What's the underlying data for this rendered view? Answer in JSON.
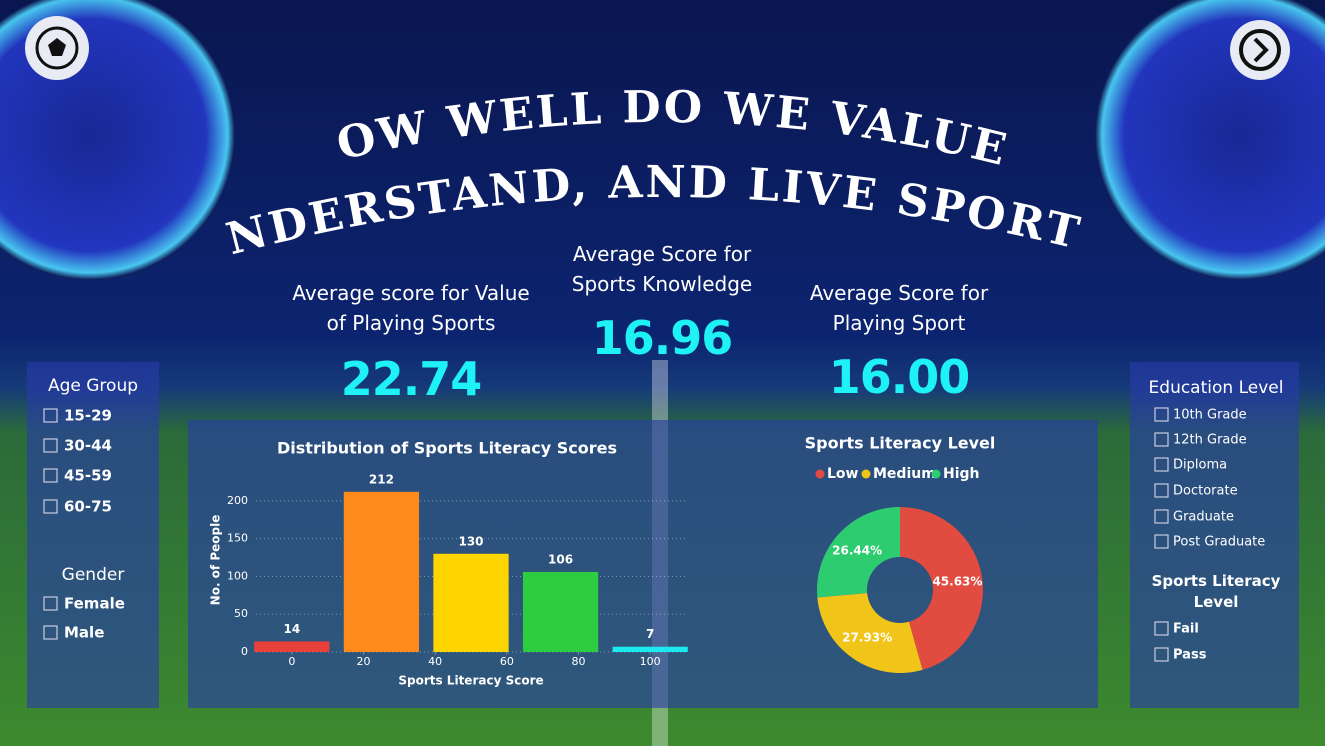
{
  "header": {
    "title_lines": [
      "HOW WELL DO WE VALUE,",
      "UNDERSTAND, AND LIVE SPORTS?"
    ]
  },
  "kpis": [
    {
      "label": "Average score for Value of Playing Sports",
      "value": "22.74"
    },
    {
      "label": "Average Score for Sports Knowledge",
      "value": "16.96"
    },
    {
      "label": "Average Score for Playing Sport",
      "value": "16.00"
    }
  ],
  "filters": {
    "age_group": {
      "title": "Age Group",
      "options": [
        "15-29",
        "30-44",
        "45-59",
        "60-75"
      ]
    },
    "gender": {
      "title": "Gender",
      "options": [
        "Female",
        "Male"
      ]
    },
    "education": {
      "title": "Education Level",
      "options": [
        "10th Grade",
        "12th Grade",
        "Diploma",
        "Doctorate",
        "Graduate",
        "Post Graduate"
      ]
    },
    "literacy": {
      "title": "Sports Literacy Level",
      "options": [
        "Fail",
        "Pass"
      ]
    }
  },
  "chart_data": [
    {
      "type": "bar",
      "title": "Distribution of Sports Literacy Scores",
      "x_label": "Sports Literacy Score",
      "y_label": "No. of People",
      "x": [
        0,
        25,
        50,
        75,
        100
      ],
      "values": [
        14,
        212,
        130,
        106,
        7
      ],
      "colors": [
        "#e8413c",
        "#ff8a1c",
        "#ffd500",
        "#2ecc40",
        "#1de9f0"
      ],
      "xlim": [
        -10,
        110
      ],
      "xticks": [
        0,
        20,
        40,
        60,
        80,
        100
      ],
      "ylim": [
        0,
        225
      ],
      "yticks": [
        0,
        50,
        100,
        150,
        200
      ],
      "grid": true
    },
    {
      "type": "pie",
      "title": "Sports Literacy Level",
      "categories": [
        "Low",
        "Medium",
        "High"
      ],
      "values": [
        45.63,
        27.93,
        26.44
      ],
      "value_labels": [
        "45.63%",
        "27.93%",
        "26.44%"
      ],
      "colors": [
        "#e24b3f",
        "#f0c419",
        "#2ecc71"
      ],
      "legend": "top"
    }
  ]
}
